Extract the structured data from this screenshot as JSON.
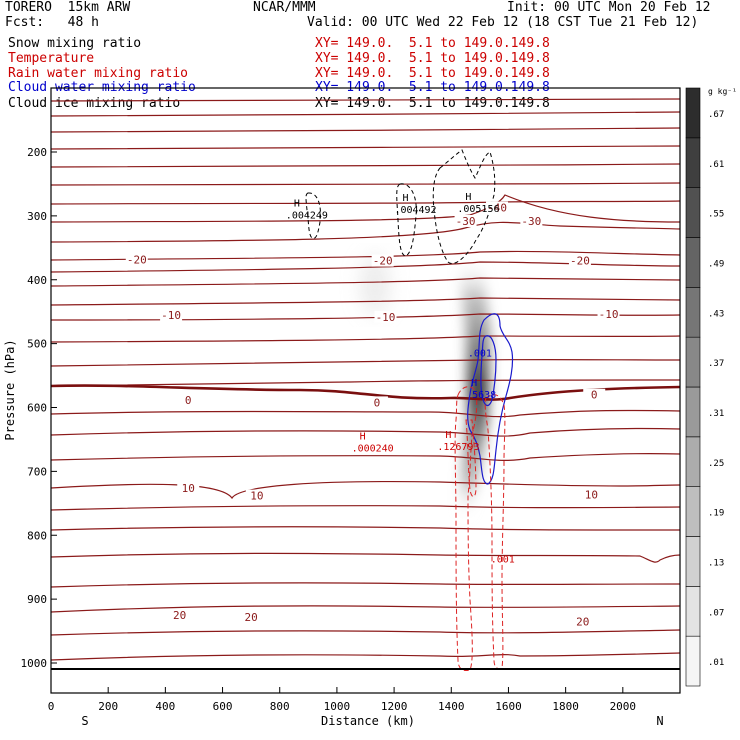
{
  "header": {
    "model": "TORERO  15km ARW",
    "org": "NCAR/MMM",
    "init": "Init: 00 UTC Mon 20 Feb 12",
    "fcst": "Fcst:   48 h",
    "valid": "Valid: 00 UTC Wed 22 Feb 12 (18 CST Tue 21 Feb 12)"
  },
  "legend": [
    {
      "name": "Snow mixing ratio",
      "xy": "XY= 149.0.  5.1 to 149.0.149.8",
      "color": "#000000",
      "xy_color": "#cc0000"
    },
    {
      "name": "Temperature",
      "xy": "XY= 149.0.  5.1 to 149.0.149.8",
      "color": "#cc0000",
      "xy_color": "#cc0000"
    },
    {
      "name": "Rain water mixing ratio",
      "xy": "XY= 149.0.  5.1 to 149.0.149.8",
      "color": "#cc0000",
      "xy_color": "#cc0000"
    },
    {
      "name": "Cloud water mixing ratio",
      "xy": "XY= 149.0.  5.1 to 149.0.149.8",
      "color": "#0000cc",
      "xy_color": "#0000cc"
    },
    {
      "name": "Cloud ice mixing ratio",
      "xy": "XY= 149.0.  5.1 to 149.0.149.8",
      "color": "#000000",
      "xy_color": "#000000"
    }
  ],
  "chart_data": {
    "type": "cross-section contour",
    "xlabel": "Distance (km)",
    "ylabel": "Pressure (hPa)",
    "xlim": [
      0,
      2200
    ],
    "ylim": [
      1050,
      100
    ],
    "x_ticks": [
      0,
      200,
      400,
      600,
      800,
      1000,
      1200,
      1400,
      1600,
      1800,
      2000
    ],
    "y_ticks": [
      200,
      300,
      400,
      500,
      600,
      700,
      800,
      900,
      1000
    ],
    "x_end_labels": {
      "left": "S",
      "right": "N"
    },
    "colorbar": {
      "unit": "g kg⁻¹",
      "ticks": [
        ".01",
        ".07",
        ".13",
        ".19",
        ".25",
        ".31",
        ".37",
        ".43",
        ".49",
        ".55",
        ".61",
        ".67"
      ]
    },
    "temperature_labels": [
      {
        "x": 1680,
        "p": 308,
        "text": "-30"
      },
      {
        "x": 1560,
        "p": 287,
        "text": "-40"
      },
      {
        "x": 1450,
        "p": 308,
        "text": "-30"
      },
      {
        "x": 300,
        "p": 368,
        "text": "-20"
      },
      {
        "x": 1160,
        "p": 370,
        "text": "-20"
      },
      {
        "x": 1850,
        "p": 370,
        "text": "-20"
      },
      {
        "x": 420,
        "p": 455,
        "text": "-10"
      },
      {
        "x": 1170,
        "p": 458,
        "text": "-10"
      },
      {
        "x": 1950,
        "p": 454,
        "text": "-10"
      },
      {
        "x": 480,
        "p": 588,
        "text": "0"
      },
      {
        "x": 1140,
        "p": 592,
        "text": "0"
      },
      {
        "x": 1900,
        "p": 580,
        "text": "0"
      },
      {
        "x": 480,
        "p": 726,
        "text": "10"
      },
      {
        "x": 720,
        "p": 738,
        "text": "10"
      },
      {
        "x": 1890,
        "p": 736,
        "text": "10"
      },
      {
        "x": 450,
        "p": 925,
        "text": "20"
      },
      {
        "x": 700,
        "p": 928,
        "text": "20"
      },
      {
        "x": 1860,
        "p": 935,
        "text": "20"
      }
    ],
    "maxima": [
      {
        "x": 860,
        "p": 285,
        "value": ".004249",
        "type": "snow"
      },
      {
        "x": 1240,
        "p": 277,
        "value": ".004492",
        "type": "snow"
      },
      {
        "x": 1460,
        "p": 275,
        "value": ".005156",
        "type": "snow"
      },
      {
        "x": 1480,
        "p": 566,
        "value": "5638",
        "type": "cloud water"
      },
      {
        "x": 1090,
        "p": 650,
        "value": ".000240",
        "type": "rain"
      },
      {
        "x": 1390,
        "p": 648,
        "value": ".126793",
        "type": "rain"
      }
    ],
    "contour_labels": [
      {
        "x": 1500,
        "p": 520,
        "value": ".001",
        "type": "cloud water"
      },
      {
        "x": 1580,
        "p": 843,
        "value": ".001",
        "type": "rain"
      }
    ]
  }
}
